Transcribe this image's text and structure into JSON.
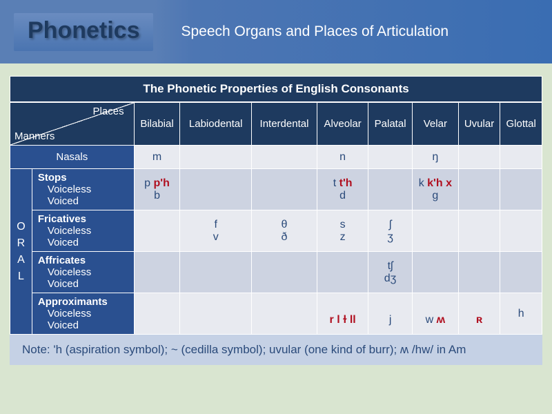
{
  "header": {
    "title": "Phonetics",
    "subtitle": "Speech Organs and Places of Articulation"
  },
  "table": {
    "title": "The Phonetic Properties of English Consonants",
    "corner": {
      "places": "Places",
      "manners": "Manners"
    },
    "columns": [
      "Bilabial",
      "Labiodental",
      "Interdental",
      "Alveolar",
      "Palatal",
      "Velar",
      "Uvular",
      "Glottal"
    ],
    "nasals": {
      "label": "Nasals",
      "cells": [
        "m",
        "",
        "",
        "n",
        "",
        "ŋ",
        "",
        ""
      ]
    },
    "oral_label": "ORAL",
    "stops": {
      "label": "Stops",
      "sub1": "Voiceless",
      "sub2": "Voiced",
      "voiceless": [
        {
          "plain": "p ",
          "accent": "p'h"
        },
        {
          "plain": "",
          "accent": ""
        },
        {
          "plain": "",
          "accent": ""
        },
        {
          "plain": "t ",
          "accent": "t'h"
        },
        {
          "plain": "",
          "accent": ""
        },
        {
          "plain": "k ",
          "accent": "k'h x"
        },
        {
          "plain": "",
          "accent": ""
        },
        {
          "plain": "",
          "accent": ""
        }
      ],
      "voiced": [
        "b",
        "",
        "",
        "d",
        "",
        "g",
        "",
        ""
      ]
    },
    "fricatives": {
      "label": "Fricatives",
      "sub1": "Voiceless",
      "sub2": "Voiced",
      "voiceless": [
        "",
        "f",
        "θ",
        "s",
        "ʃ",
        "",
        "",
        ""
      ],
      "voiced": [
        "",
        "v",
        "ð",
        "z",
        "ʒ",
        "",
        "",
        ""
      ]
    },
    "affricates": {
      "label": "Affricates",
      "sub1": "Voiceless",
      "sub2": "Voiced",
      "voiceless": [
        "",
        "",
        "",
        "",
        "tʃ",
        "",
        "",
        ""
      ],
      "voiced": [
        "",
        "",
        "",
        "",
        "dʒ",
        "",
        "",
        ""
      ]
    },
    "approximants": {
      "label": "Approximants",
      "sub1": "Voiceless",
      "sub2": "Voiced",
      "voiceless": [
        "",
        "",
        "",
        "",
        "",
        "",
        "",
        "h"
      ],
      "voiced": [
        {
          "plain": "",
          "accent": ""
        },
        {
          "plain": "",
          "accent": ""
        },
        {
          "plain": "",
          "accent": ""
        },
        {
          "plain": "",
          "accent": "r l ɫ ll"
        },
        {
          "plain": "j",
          "accent": ""
        },
        {
          "plain": "w ",
          "accent": "ʍ"
        },
        {
          "plain": "",
          "accent": "ʀ"
        },
        {
          "plain": "",
          "accent": ""
        }
      ]
    },
    "note": "Note: 'h (aspiration symbol); ~ (cedilla symbol); uvular (one kind of burr); ʍ /hw/ in Am"
  },
  "colors": {
    "header_dark": "#1e3a5f",
    "header_mid": "#2a5090",
    "accent": "#b01020",
    "bg": "#d9e5d0",
    "row_light": "#e8eaf0",
    "row_mid": "#cdd3e1"
  }
}
